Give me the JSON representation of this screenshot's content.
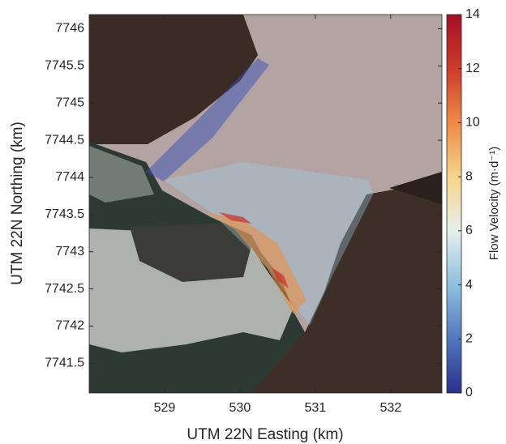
{
  "chart_data": {
    "type": "map",
    "xlabel": "UTM 22N Easting (km)",
    "ylabel": "UTM 22N Northing (km)",
    "xlim": [
      528.0,
      532.68
    ],
    "ylim": [
      7741.1,
      7746.19
    ],
    "xticks": [
      529,
      530,
      531,
      532
    ],
    "yticks": [
      7741.5,
      7742,
      7742.5,
      7743,
      7743.5,
      7744,
      7744.5,
      7745,
      7745.5,
      7746
    ],
    "colorbar": {
      "label": "Flow Velocity (m·d⁻¹)",
      "lim": [
        0,
        14
      ],
      "ticks": [
        0,
        2,
        4,
        6,
        8,
        10,
        12,
        14
      ],
      "colormap": [
        "#2b2f8c",
        "#4f78bd",
        "#8fc0de",
        "#e6f0ec",
        "#f6d58a",
        "#ef8a45",
        "#cf3a2a",
        "#a50f25"
      ]
    }
  }
}
